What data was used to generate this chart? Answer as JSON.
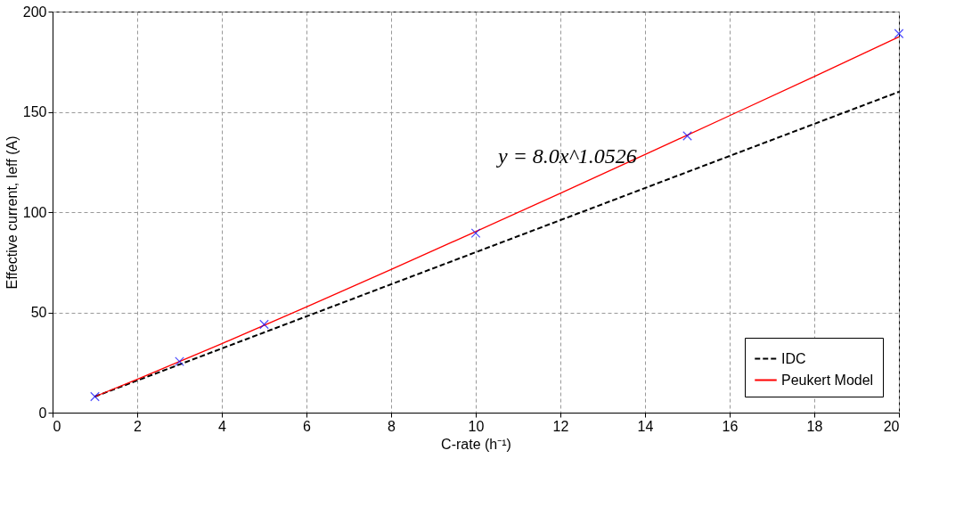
{
  "chart_data": {
    "type": "line",
    "xlabel": "C-rate (h⁻¹)",
    "ylabel": "Effective current, Ieff (A)",
    "xlim": [
      0,
      20
    ],
    "xticks": [
      0,
      2,
      4,
      6,
      8,
      10,
      12,
      14,
      16,
      18,
      20
    ],
    "ylim": [
      0,
      200
    ],
    "yticks": [
      0,
      50,
      100,
      150,
      200
    ],
    "grid": true,
    "legend": "bottom right",
    "annotations": [
      "y = 8.0x^1.0526"
    ],
    "series": [
      {
        "name": "IDC",
        "type": "line",
        "color": "#000000",
        "line_style": "dashed",
        "x": [
          1,
          20
        ],
        "values": [
          8,
          160
        ]
      },
      {
        "name": "Peukert Model",
        "type": "line",
        "color": "#ff0000",
        "line_style": "solid",
        "x": [
          1,
          2,
          4,
          6,
          8,
          10,
          12,
          14,
          16,
          18,
          20
        ],
        "values": [
          8,
          16.6,
          34.4,
          52.7,
          71.4,
          90.3,
          109.4,
          128.7,
          148.1,
          167.6,
          187.4
        ]
      },
      {
        "type": "scatter",
        "color": "#0000ff",
        "marker": "cross",
        "x": [
          1,
          3,
          5,
          10,
          15,
          20
        ],
        "values": [
          8,
          25.5,
          44,
          89.5,
          138,
          189
        ]
      }
    ]
  }
}
